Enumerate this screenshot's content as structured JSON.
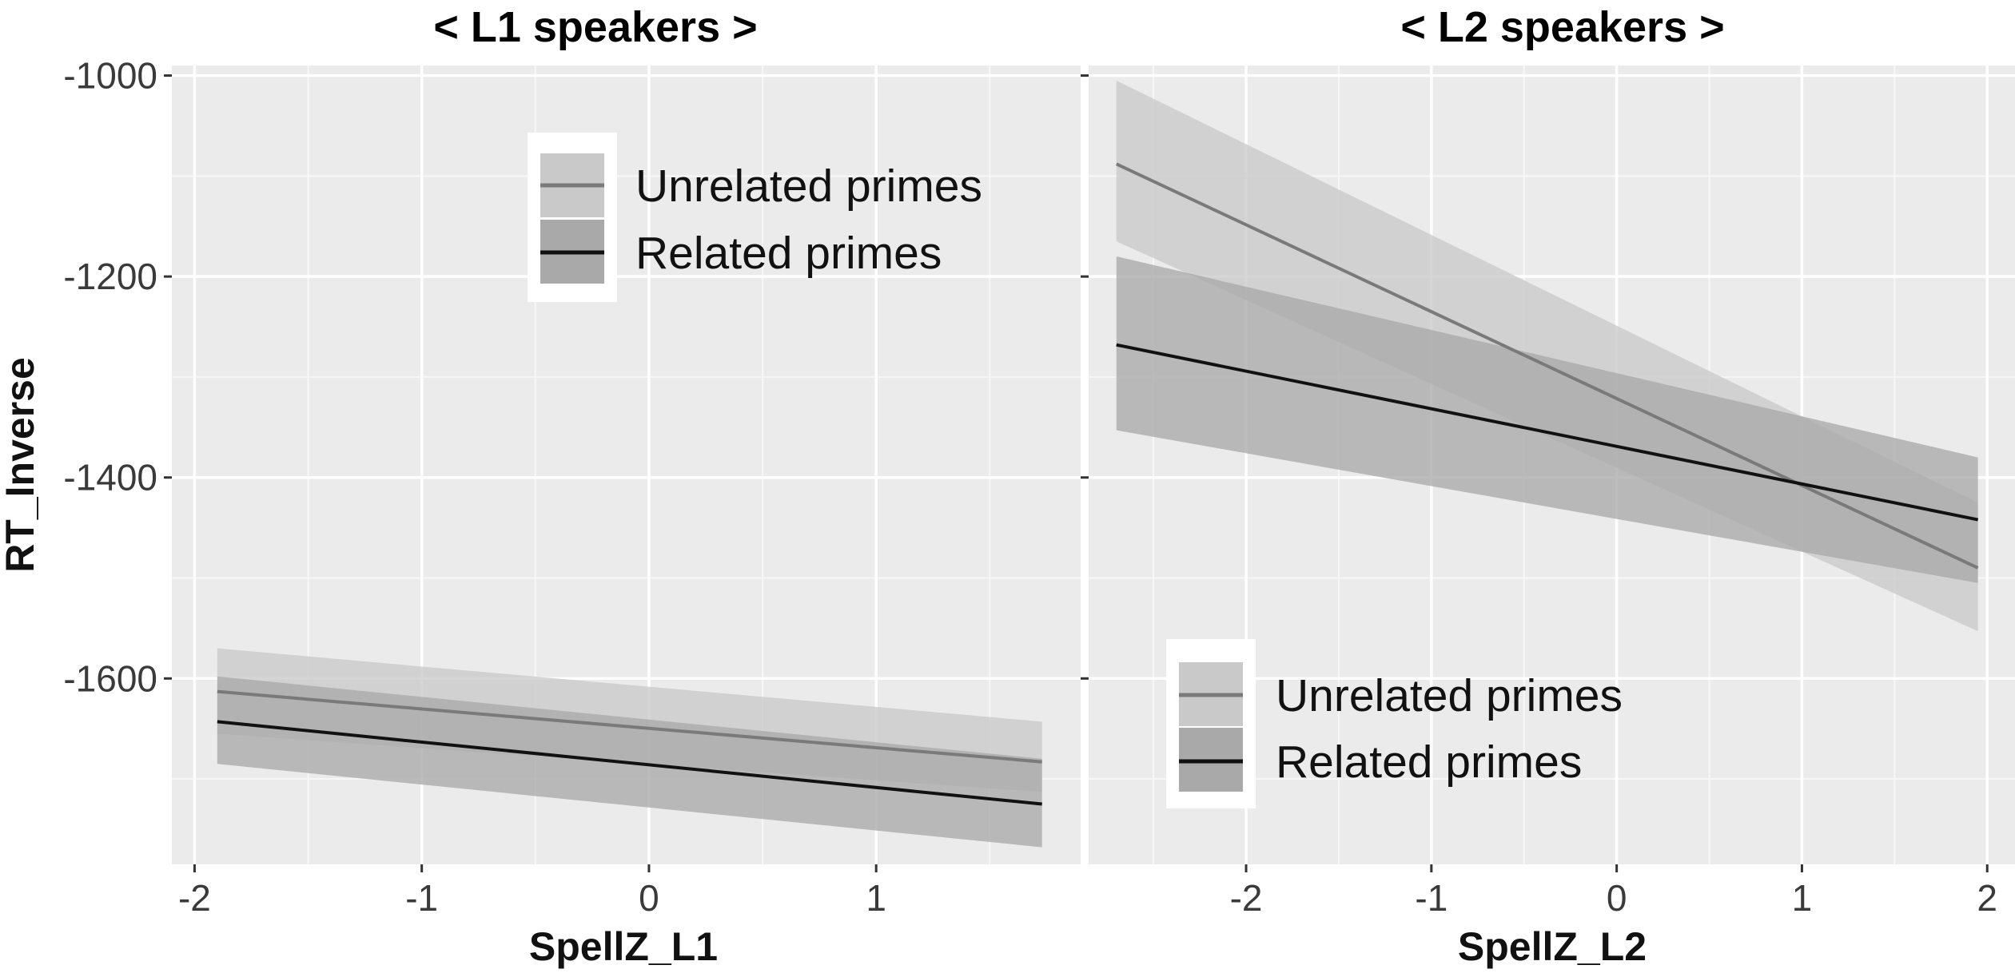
{
  "chart_data": [
    {
      "type": "line",
      "title": "< L1 speakers >",
      "xlabel": "SpellZ_L1",
      "ylabel": "RT_Inverse",
      "xlim": [
        -2.1,
        1.9
      ],
      "ylim": [
        -1785,
        -990
      ],
      "xticks": [
        -2,
        -1,
        0,
        1
      ],
      "xtick_labels": [
        "-2",
        "-1",
        "0",
        "1"
      ],
      "yticks": [
        -1000,
        -1200,
        -1400,
        -1600
      ],
      "ytick_labels": [
        "-1000",
        "-1200",
        "-1400",
        "-1600"
      ],
      "grid": true,
      "legend_position": "top-center",
      "series": [
        {
          "name": "Unrelated primes",
          "x": [
            -1.9,
            1.73
          ],
          "y": [
            -1613,
            -1683
          ],
          "ci_lower": [
            -1655,
            -1713
          ],
          "ci_upper": [
            -1570,
            -1643
          ],
          "line_color": "#7a7a7a",
          "ribbon_color": "#c9c9c9"
        },
        {
          "name": "Related primes",
          "x": [
            -1.9,
            1.73
          ],
          "y": [
            -1643,
            -1725
          ],
          "ci_lower": [
            -1685,
            -1768
          ],
          "ci_upper": [
            -1598,
            -1680
          ],
          "line_color": "#111111",
          "ribbon_color": "#a9a9a9"
        }
      ]
    },
    {
      "type": "line",
      "title": "< L2 speakers >",
      "xlabel": "SpellZ_L2",
      "ylabel": "",
      "xlim": [
        -2.85,
        2.15
      ],
      "ylim": [
        -1785,
        -990
      ],
      "xticks": [
        -2,
        -1,
        0,
        1,
        2
      ],
      "xtick_labels": [
        "-2",
        "-1",
        "0",
        "1",
        "2"
      ],
      "yticks": [
        -1000,
        -1200,
        -1400,
        -1600
      ],
      "ytick_labels": [],
      "grid": true,
      "legend_position": "bottom-left",
      "series": [
        {
          "name": "Unrelated primes",
          "x": [
            -2.7,
            1.95
          ],
          "y": [
            -1088,
            -1490
          ],
          "ci_lower": [
            -1165,
            -1553
          ],
          "ci_upper": [
            -1005,
            -1425
          ],
          "line_color": "#7a7a7a",
          "ribbon_color": "#c9c9c9"
        },
        {
          "name": "Related primes",
          "x": [
            -2.7,
            1.95
          ],
          "y": [
            -1268,
            -1442
          ],
          "ci_lower": [
            -1353,
            -1505
          ],
          "ci_upper": [
            -1180,
            -1380
          ],
          "line_color": "#111111",
          "ribbon_color": "#a9a9a9"
        }
      ]
    }
  ]
}
